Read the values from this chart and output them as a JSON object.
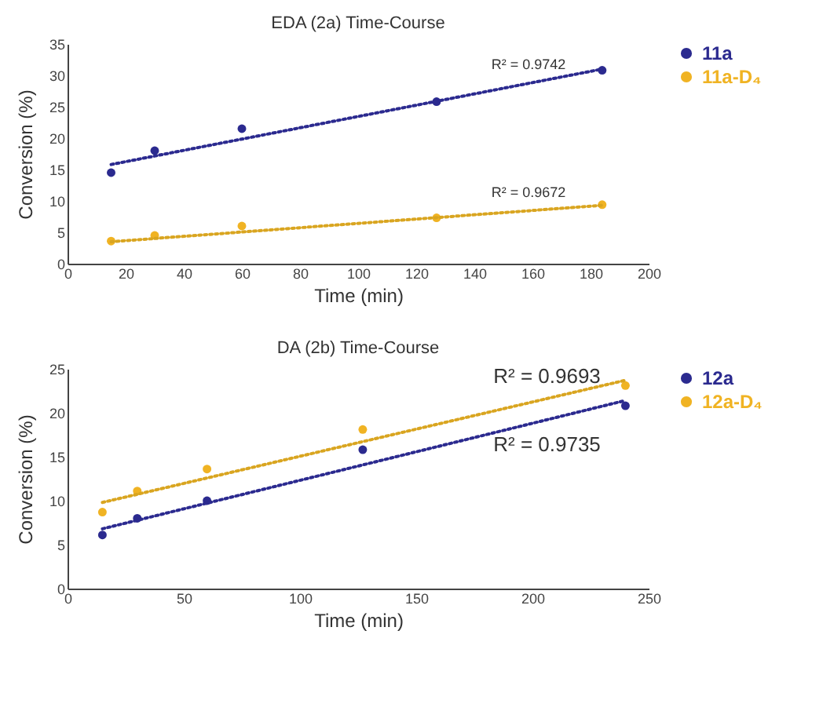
{
  "chart_data": [
    {
      "type": "scatter",
      "title": "EDA (2a) Time-Course",
      "xlabel": "Time (min)",
      "ylabel": "Conversion (%)",
      "xlim": [
        0,
        200
      ],
      "xticks": [
        0,
        20,
        40,
        60,
        80,
        100,
        120,
        140,
        160,
        180,
        200
      ],
      "ylim": [
        0,
        35
      ],
      "yticks": [
        0,
        5,
        10,
        15,
        20,
        25,
        30,
        35
      ],
      "grid": false,
      "legend": "right",
      "marker": "circle",
      "line_style": "dotted",
      "series": [
        {
          "name": "11a",
          "type": "scatter",
          "color": "#2b2a8f",
          "x": [
            15,
            30,
            60,
            127,
            184
          ],
          "values": [
            14.5,
            18,
            21.5,
            25.8,
            30.8
          ]
        },
        {
          "name": "11a-D₄",
          "type": "scatter",
          "color": "#f0b323",
          "x": [
            15,
            30,
            60,
            127,
            184
          ],
          "values": [
            3.6,
            4.5,
            6,
            7.3,
            9.4
          ]
        },
        {
          "type": "line",
          "marker": "none",
          "color": "#2b2a8f",
          "x": [
            15,
            184
          ],
          "values": [
            15.8,
            31
          ]
        },
        {
          "type": "line",
          "marker": "none",
          "color": "#d9a520",
          "x": [
            15,
            184
          ],
          "values": [
            3.5,
            9.3
          ]
        }
      ],
      "annotations": [
        "R² = 0.9742",
        "R² = 0.9672"
      ]
    },
    {
      "type": "scatter",
      "title": "DA (2b) Time-Course",
      "xlabel": "Time (min)",
      "ylabel": "Conversion (%)",
      "xlim": [
        0,
        250
      ],
      "xticks": [
        0,
        50,
        100,
        150,
        200,
        250
      ],
      "ylim": [
        0,
        25
      ],
      "yticks": [
        0,
        5,
        10,
        15,
        20,
        25
      ],
      "grid": false,
      "legend": "right",
      "marker": "circle",
      "line_style": "dotted",
      "series": [
        {
          "name": "12a",
          "type": "scatter",
          "color": "#2b2a8f",
          "x": [
            15,
            30,
            60,
            127,
            240
          ],
          "values": [
            6.1,
            8,
            10,
            15.8,
            20.8
          ]
        },
        {
          "name": "12a-D₄",
          "type": "scatter",
          "color": "#f0b323",
          "x": [
            15,
            30,
            60,
            127,
            240
          ],
          "values": [
            8.7,
            11.1,
            13.6,
            18.1,
            23.1
          ]
        },
        {
          "type": "line",
          "marker": "none",
          "color": "#d9a520",
          "x": [
            15,
            240
          ],
          "values": [
            9.8,
            23.7
          ]
        },
        {
          "type": "line",
          "marker": "none",
          "color": "#2b2a8f",
          "x": [
            15,
            240
          ],
          "values": [
            6.8,
            21.4
          ]
        }
      ],
      "annotations": [
        "R² = 0.9693",
        "R² = 0.9735"
      ]
    }
  ]
}
